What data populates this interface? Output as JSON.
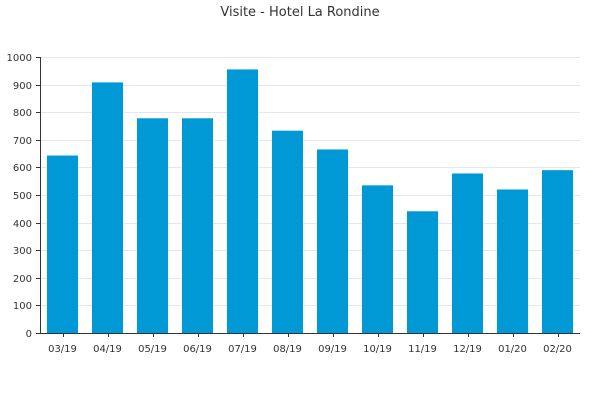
{
  "chart_data": {
    "type": "bar",
    "title": "Visite - Hotel La Rondine",
    "xlabel": "",
    "ylabel": "",
    "categories": [
      "03/19",
      "04/19",
      "05/19",
      "06/19",
      "07/19",
      "08/19",
      "09/19",
      "10/19",
      "11/19",
      "12/19",
      "01/20",
      "02/20"
    ],
    "values": [
      643,
      908,
      778,
      778,
      955,
      733,
      665,
      535,
      441,
      578,
      520,
      590
    ],
    "ylim": [
      0,
      1000
    ],
    "yticks": [
      0,
      100,
      200,
      300,
      400,
      500,
      600,
      700,
      800,
      900,
      1000
    ],
    "grid": true,
    "legend": "none",
    "bar_color": "#0099d6"
  }
}
